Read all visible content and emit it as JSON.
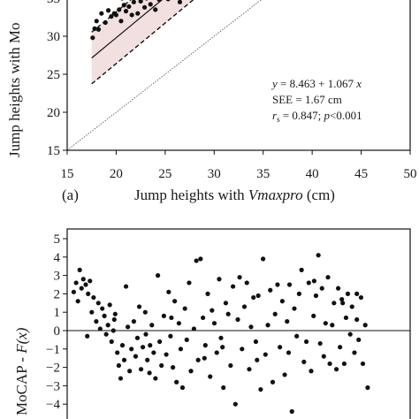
{
  "chart_data": [
    {
      "type": "scatter",
      "panel_label": "(a)",
      "xlabel_prefix": "Jump heights with ",
      "xlabel_italic": "Vmaxpro",
      "xlabel_suffix": " (cm)",
      "ylabel": "Jump heights with Mo",
      "xlim": [
        15,
        50
      ],
      "ylim": [
        15,
        40
      ],
      "xticks": [
        15,
        20,
        25,
        30,
        35,
        40,
        45,
        50
      ],
      "yticks": [
        15,
        20,
        25,
        30,
        35,
        40
      ],
      "regression": {
        "intercept": 8.463,
        "slope": 1.067,
        "x_range": [
          17.5,
          34
        ]
      },
      "limits_offset": 3.4,
      "identity_line": true,
      "band_color": "#f2e0e0",
      "annotation": {
        "line1_y": "y",
        "line1_rest": " = 8.463 + 1.067 ",
        "line1_x": "x",
        "line2": "SEE = 1.67 cm",
        "line3_r": "r",
        "line3_sub": "s",
        "line3_rest": " = 0.847;   ",
        "line3_p": "p",
        "line3_end": "<0.001"
      },
      "points": [
        [
          17.6,
          29.8
        ],
        [
          17.8,
          31.0
        ],
        [
          18.0,
          32.0
        ],
        [
          18.2,
          30.9
        ],
        [
          18.5,
          33.0
        ],
        [
          18.9,
          31.8
        ],
        [
          19.2,
          33.4
        ],
        [
          19.5,
          32.6
        ],
        [
          19.8,
          33.0
        ],
        [
          20.0,
          32.8
        ],
        [
          20.3,
          33.5
        ],
        [
          20.5,
          32.0
        ],
        [
          20.8,
          34.1
        ],
        [
          21.0,
          33.3
        ],
        [
          21.3,
          33.9
        ],
        [
          21.6,
          32.8
        ],
        [
          21.8,
          34.5
        ],
        [
          22.0,
          35.3
        ],
        [
          22.2,
          33.0
        ],
        [
          22.5,
          34.6
        ],
        [
          22.7,
          35.9
        ],
        [
          22.9,
          33.8
        ],
        [
          23.1,
          35.0
        ],
        [
          23.3,
          36.5
        ],
        [
          23.5,
          34.2
        ],
        [
          23.7,
          35.6
        ],
        [
          23.9,
          37.0
        ],
        [
          24.0,
          33.5
        ],
        [
          24.2,
          36.0
        ],
        [
          24.4,
          34.8
        ],
        [
          24.6,
          37.3
        ],
        [
          24.8,
          35.4
        ],
        [
          25.0,
          36.6
        ],
        [
          25.1,
          38.2
        ],
        [
          25.3,
          34.9
        ],
        [
          25.5,
          37.5
        ],
        [
          25.6,
          36.1
        ],
        [
          25.8,
          38.7
        ],
        [
          26.0,
          35.8
        ],
        [
          26.1,
          37.0
        ],
        [
          26.3,
          39.0
        ],
        [
          26.4,
          36.4
        ],
        [
          26.6,
          38.0
        ],
        [
          26.7,
          35.2
        ],
        [
          26.9,
          37.6
        ],
        [
          27.0,
          39.3
        ],
        [
          27.1,
          36.8
        ],
        [
          27.3,
          38.4
        ],
        [
          27.4,
          37.2
        ],
        [
          27.5,
          39.6
        ],
        [
          27.7,
          36.0
        ],
        [
          27.8,
          38.1
        ],
        [
          27.9,
          37.5
        ],
        [
          28.0,
          39.8
        ],
        [
          28.1,
          36.6
        ],
        [
          28.3,
          38.9
        ],
        [
          28.4,
          37.9
        ],
        [
          28.5,
          40.0
        ],
        [
          28.7,
          37.0
        ],
        [
          28.8,
          39.2
        ],
        [
          28.9,
          38.5
        ],
        [
          29.1,
          36.9
        ],
        [
          29.2,
          39.5
        ],
        [
          29.4,
          38.2
        ],
        [
          29.5,
          40.0
        ],
        [
          29.7,
          37.6
        ],
        [
          29.9,
          39.0
        ],
        [
          30.1,
          38.6
        ],
        [
          30.3,
          40.0
        ],
        [
          30.5,
          37.9
        ],
        [
          30.8,
          39.4
        ],
        [
          31.0,
          38.3
        ],
        [
          31.3,
          39.8
        ],
        [
          31.6,
          38.9
        ],
        [
          32.0,
          40.0
        ],
        [
          32.5,
          39.1
        ],
        [
          33.0,
          40.0
        ],
        [
          33.6,
          38.0
        ],
        [
          26.2,
          38.4
        ],
        [
          26.8,
          39.0
        ],
        [
          27.2,
          40.0
        ],
        [
          27.6,
          38.9
        ],
        [
          28.2,
          38.0
        ],
        [
          28.6,
          38.7
        ],
        [
          29.0,
          40.0
        ],
        [
          29.6,
          39.3
        ],
        [
          30.0,
          37.8
        ],
        [
          30.6,
          39.7
        ],
        [
          24.3,
          38.4
        ],
        [
          25.4,
          39.5
        ],
        [
          22.4,
          37.3
        ],
        [
          23.0,
          36.3
        ],
        [
          21.4,
          35.6
        ],
        [
          20.6,
          35.0
        ],
        [
          26.5,
          34.5
        ],
        [
          27.4,
          35.5
        ]
      ]
    },
    {
      "type": "scatter",
      "ylabel_prefix": "MoCAP -  ",
      "ylabel_italic": "F(x)",
      "ylim": [
        -5,
        5
      ],
      "yticks": [
        -4,
        -3,
        -2,
        -1,
        0,
        1,
        2,
        3,
        4,
        5
      ],
      "x_range": [
        0,
        1
      ],
      "zero_line": true,
      "points": [
        [
          0.01,
          2.1
        ],
        [
          0.018,
          2.6
        ],
        [
          0.024,
          1.6
        ],
        [
          0.03,
          3.3
        ],
        [
          0.036,
          2.3
        ],
        [
          0.042,
          2.8
        ],
        [
          0.05,
          2.5
        ],
        [
          0.058,
          2.0
        ],
        [
          0.064,
          2.7
        ],
        [
          0.07,
          1.0
        ],
        [
          0.076,
          1.8
        ],
        [
          0.085,
          0.5
        ],
        [
          0.092,
          1.5
        ],
        [
          0.098,
          0.1
        ],
        [
          0.105,
          1.2
        ],
        [
          0.112,
          0.8
        ],
        [
          0.118,
          -0.2
        ],
        [
          0.124,
          0.3
        ],
        [
          0.13,
          1.4
        ],
        [
          0.136,
          -0.6
        ],
        [
          0.142,
          0.0
        ],
        [
          0.148,
          0.9
        ],
        [
          0.155,
          -1.2
        ],
        [
          0.16,
          -1.9
        ],
        [
          0.166,
          -2.6
        ],
        [
          0.172,
          -0.8
        ],
        [
          0.178,
          -1.6
        ],
        [
          0.184,
          2.4
        ],
        [
          0.19,
          0.2
        ],
        [
          0.196,
          -2.2
        ],
        [
          0.202,
          -1.0
        ],
        [
          0.21,
          0.5
        ],
        [
          0.216,
          -1.4
        ],
        [
          0.222,
          -0.4
        ],
        [
          0.228,
          1.3
        ],
        [
          0.234,
          -2.1
        ],
        [
          0.24,
          -0.9
        ],
        [
          0.248,
          1.0
        ],
        [
          0.255,
          -1.6
        ],
        [
          0.262,
          -2.3
        ],
        [
          0.27,
          0.3
        ],
        [
          0.276,
          -1.2
        ],
        [
          0.282,
          -2.6
        ],
        [
          0.29,
          3.0
        ],
        [
          0.296,
          -0.6
        ],
        [
          0.302,
          -1.9
        ],
        [
          0.31,
          0.8
        ],
        [
          0.318,
          -1.3
        ],
        [
          0.326,
          2.1
        ],
        [
          0.332,
          -0.3
        ],
        [
          0.34,
          -2.0
        ],
        [
          0.346,
          1.6
        ],
        [
          0.352,
          -2.8
        ],
        [
          0.36,
          0.4
        ],
        [
          0.366,
          -1.0
        ],
        [
          0.372,
          -3.1
        ],
        [
          0.38,
          1.2
        ],
        [
          0.386,
          -0.5
        ],
        [
          0.394,
          2.6
        ],
        [
          0.4,
          -2.2
        ],
        [
          0.41,
          0.1
        ],
        [
          0.418,
          3.8
        ],
        [
          0.424,
          -1.6
        ],
        [
          0.432,
          3.9
        ],
        [
          0.44,
          0.7
        ],
        [
          0.448,
          -0.8
        ],
        [
          0.456,
          2.0
        ],
        [
          0.464,
          -2.5
        ],
        [
          0.47,
          1.1
        ],
        [
          0.478,
          0.4
        ],
        [
          0.486,
          -1.2
        ],
        [
          0.494,
          2.8
        ],
        [
          0.5,
          -0.4
        ],
        [
          0.508,
          -3.1
        ],
        [
          0.516,
          1.5
        ],
        [
          0.524,
          0.9
        ],
        [
          0.532,
          -1.9
        ],
        [
          0.54,
          2.4
        ],
        [
          0.548,
          -4.0
        ],
        [
          0.556,
          0.6
        ],
        [
          0.562,
          2.9
        ],
        [
          0.57,
          -1.0
        ],
        [
          0.578,
          1.3
        ],
        [
          0.586,
          2.6
        ],
        [
          0.594,
          -2.1
        ],
        [
          0.6,
          0.2
        ],
        [
          0.608,
          1.8
        ],
        [
          0.616,
          -0.6
        ],
        [
          0.624,
          1.9
        ],
        [
          0.632,
          -3.2
        ],
        [
          0.64,
          3.9
        ],
        [
          0.648,
          -1.3
        ],
        [
          0.656,
          0.3
        ],
        [
          0.664,
          2.2
        ],
        [
          0.672,
          -2.8
        ],
        [
          0.68,
          0.9
        ],
        [
          0.688,
          2.5
        ],
        [
          0.696,
          -0.9
        ],
        [
          0.704,
          1.6
        ],
        [
          0.712,
          -2.4
        ],
        [
          0.72,
          0.5
        ],
        [
          0.728,
          2.5
        ],
        [
          0.736,
          -4.4
        ],
        [
          0.744,
          1.2
        ],
        [
          0.752,
          -0.3
        ],
        [
          0.76,
          2.0
        ],
        [
          0.768,
          3.3
        ],
        [
          0.776,
          -1.7
        ],
        [
          0.784,
          -0.6
        ],
        [
          0.792,
          2.6
        ],
        [
          0.8,
          -2.2
        ],
        [
          0.808,
          0.8
        ],
        [
          0.816,
          1.9
        ],
        [
          0.824,
          4.1
        ],
        [
          0.83,
          -0.7
        ],
        [
          0.836,
          2.3
        ],
        [
          0.842,
          -1.4
        ],
        [
          0.848,
          0.4
        ],
        [
          0.856,
          2.9
        ],
        [
          0.862,
          -1.8
        ],
        [
          0.87,
          0.3
        ],
        [
          0.876,
          1.5
        ],
        [
          0.884,
          -2.1
        ],
        [
          0.89,
          2.3
        ],
        [
          0.896,
          -0.9
        ],
        [
          0.902,
          1.7
        ],
        [
          0.91,
          -1.8
        ],
        [
          0.916,
          0.7
        ],
        [
          0.922,
          2.0
        ],
        [
          0.93,
          -0.2
        ],
        [
          0.936,
          1.3
        ],
        [
          0.944,
          -1.2
        ],
        [
          0.952,
          0.6
        ],
        [
          0.958,
          -0.5
        ],
        [
          0.966,
          1.8
        ],
        [
          0.972,
          -1.8
        ],
        [
          0.98,
          0.3
        ],
        [
          0.988,
          -3.1
        ],
        [
          0.055,
          -0.3
        ],
        [
          0.145,
          0.6
        ],
        [
          0.25,
          -0.2
        ],
        [
          0.335,
          0.7
        ],
        [
          0.445,
          -1.5
        ],
        [
          0.505,
          -0.9
        ],
        [
          0.62,
          -1.6
        ],
        [
          0.725,
          -1.2
        ],
        [
          0.81,
          2.7
        ],
        [
          0.905,
          1.5
        ],
        [
          0.952,
          2.0
        ],
        [
          0.264,
          -0.8
        ]
      ]
    }
  ]
}
